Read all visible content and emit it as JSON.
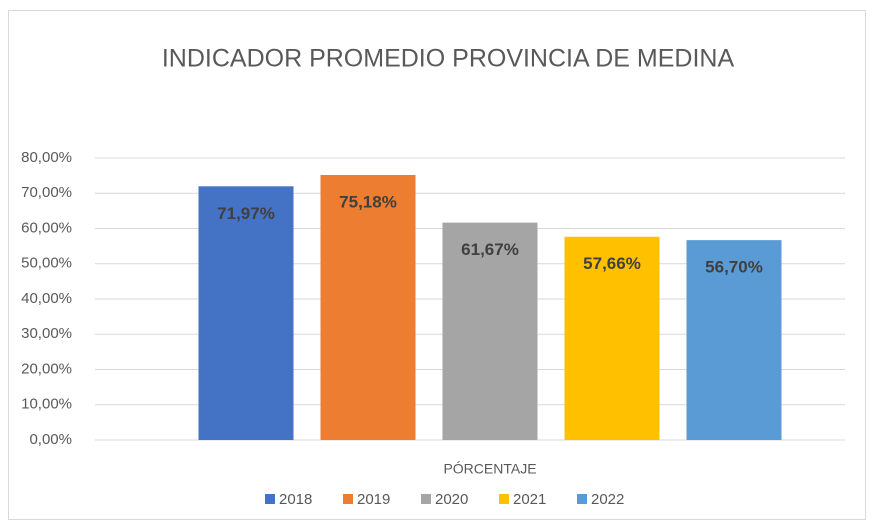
{
  "chart_data": {
    "type": "bar",
    "title": "INDICADOR PROMEDIO PROVINCIA DE MEDINA",
    "categories": [
      "PÓRCENTAJE"
    ],
    "series": [
      {
        "name": "2018",
        "color": "#4472c4",
        "values": [
          71.97
        ],
        "value_labels": [
          "71,97%"
        ]
      },
      {
        "name": "2019",
        "color": "#ed7d31",
        "values": [
          75.18
        ],
        "value_labels": [
          "75,18%"
        ]
      },
      {
        "name": "2020",
        "color": "#a5a5a5",
        "values": [
          61.67
        ],
        "value_labels": [
          "61,67%"
        ]
      },
      {
        "name": "2021",
        "color": "#ffc000",
        "values": [
          57.66
        ],
        "value_labels": [
          "57,66%"
        ]
      },
      {
        "name": "2022",
        "color": "#5b9bd5",
        "values": [
          56.7
        ],
        "value_labels": [
          "56,70%"
        ]
      }
    ],
    "ylim": [
      0,
      80
    ],
    "yticks": [
      {
        "value": 0,
        "label": "0,00%"
      },
      {
        "value": 10,
        "label": "10,00%"
      },
      {
        "value": 20,
        "label": "20,00%"
      },
      {
        "value": 30,
        "label": "30,00%"
      },
      {
        "value": 40,
        "label": "40,00%"
      },
      {
        "value": 50,
        "label": "50,00%"
      },
      {
        "value": 60,
        "label": "60,00%"
      },
      {
        "value": 70,
        "label": "70,00%"
      },
      {
        "value": 80,
        "label": "80,00%"
      }
    ],
    "grid": true,
    "legend": "bottom"
  }
}
